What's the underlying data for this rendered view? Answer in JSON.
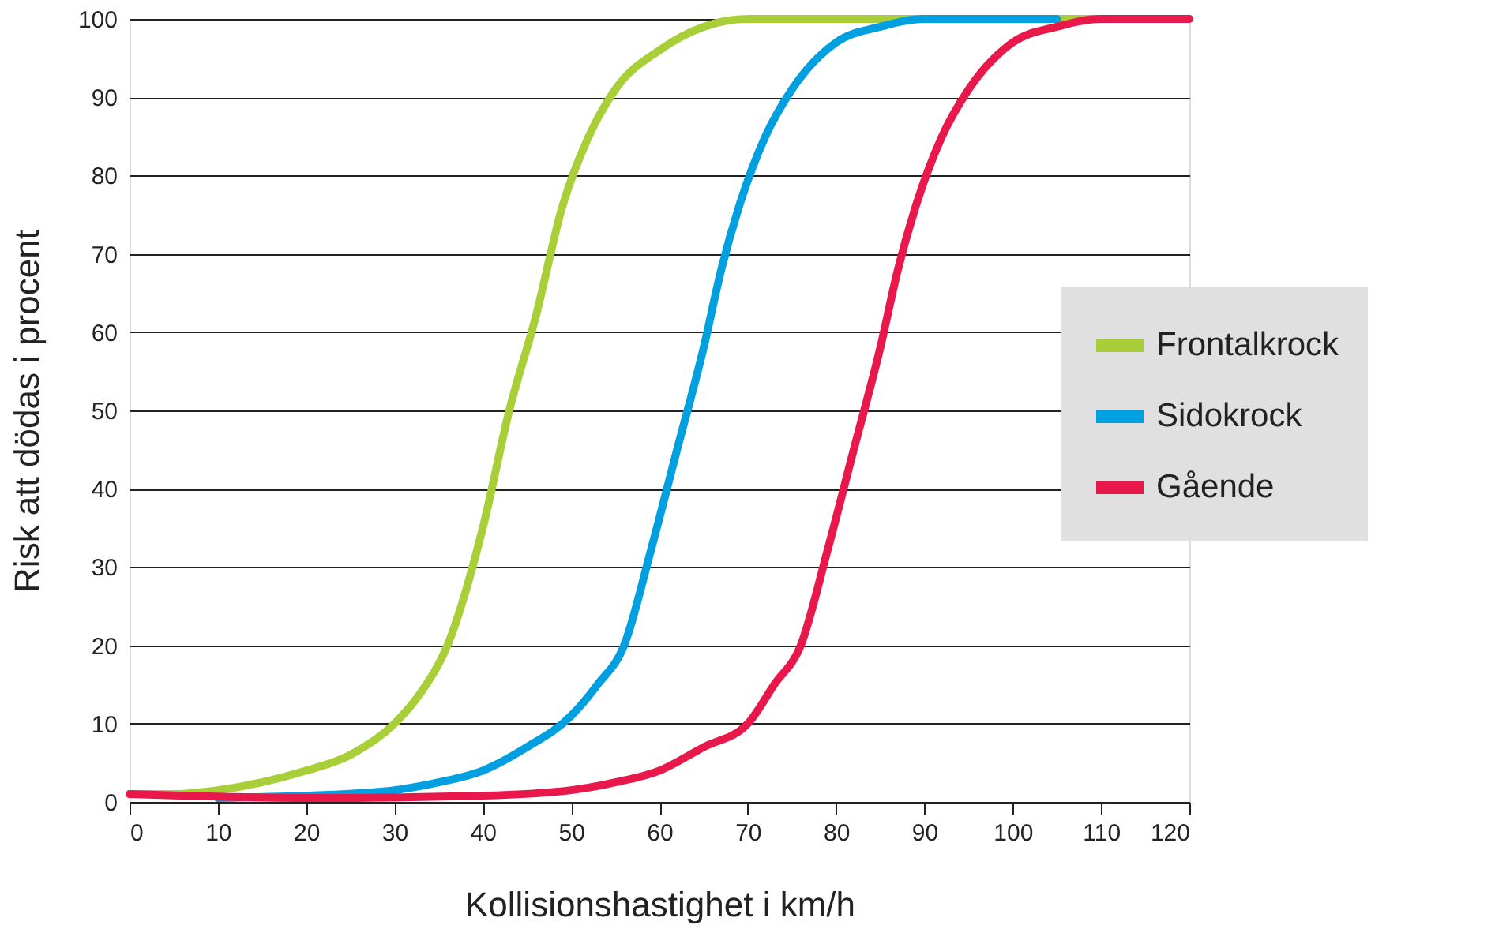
{
  "chart_data": {
    "type": "line",
    "xlabel": "Kollisionshastighet i km/h",
    "ylabel": "Risk att dödas i procent",
    "xlim": [
      0,
      120
    ],
    "xticks": [
      0,
      10,
      20,
      30,
      40,
      50,
      60,
      70,
      80,
      90,
      100,
      110,
      120
    ],
    "ylim": [
      0,
      100
    ],
    "yticks": [
      0,
      10,
      20,
      30,
      40,
      50,
      60,
      70,
      80,
      90,
      100
    ],
    "grid": "y",
    "legend": "right",
    "line_style": "solid",
    "marker": "none",
    "series": [
      {
        "name": "Frontalkrock",
        "color": "#a8cf38",
        "x": [
          0,
          5,
          10,
          15,
          20,
          25,
          30,
          33,
          36,
          40,
          43,
          46,
          49,
          52,
          55,
          60,
          65,
          70,
          120
        ],
        "values": [
          1,
          1,
          1.5,
          2.5,
          4,
          6,
          10,
          14,
          20,
          35,
          50,
          62,
          76,
          85,
          91,
          96,
          99,
          100,
          100
        ]
      },
      {
        "name": "Sidokrock",
        "color": "#00a0e0",
        "x": [
          10,
          20,
          30,
          35,
          40,
          45,
          50,
          53,
          56,
          59,
          62,
          65,
          67,
          69,
          72,
          75,
          80,
          85,
          90,
          105
        ],
        "values": [
          0.5,
          0.8,
          1.5,
          2.5,
          4,
          7,
          11,
          15,
          20,
          32,
          45,
          58,
          68,
          76,
          85,
          91,
          97,
          99,
          100,
          100
        ]
      },
      {
        "name": "Gående",
        "color": "#e8184a",
        "x": [
          0,
          20,
          40,
          50,
          55,
          60,
          65,
          70,
          73,
          76,
          79,
          82,
          85,
          87,
          89,
          92,
          95,
          100,
          105,
          110,
          120
        ],
        "values": [
          1,
          0.5,
          0.8,
          1.5,
          2.5,
          4,
          7,
          10,
          15,
          20,
          32,
          45,
          58,
          68,
          76,
          85,
          91,
          97,
          99,
          100,
          100
        ]
      }
    ]
  }
}
